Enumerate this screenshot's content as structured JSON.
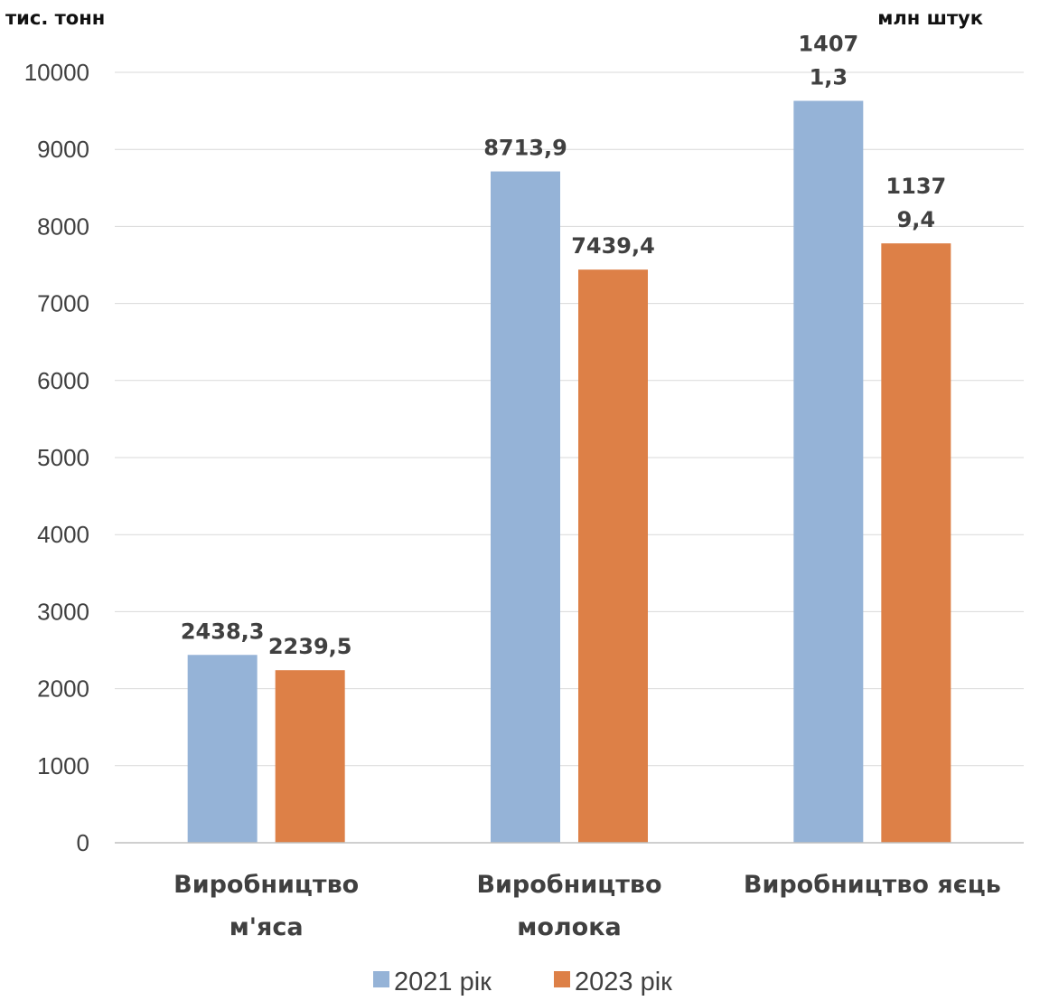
{
  "chart_data": {
    "type": "bar",
    "title": "",
    "left_unit_label": "тис. тонн",
    "right_unit_label": "млн штук",
    "categories": [
      [
        "Виробництво",
        "м'яса"
      ],
      [
        "Виробництво",
        "молока"
      ],
      [
        "Виробництво яєць"
      ]
    ],
    "series": [
      {
        "name": "2021 рік",
        "color": "#95b3d7",
        "values": [
          2438.3,
          8713.9,
          9630
        ],
        "labels": [
          [
            "2438,3"
          ],
          [
            "8713,9"
          ],
          [
            "1407",
            "1,3"
          ]
        ]
      },
      {
        "name": "2023 рік",
        "color": "#dd8047",
        "values": [
          2239.5,
          7439.4,
          7780
        ],
        "labels": [
          [
            "2239,5"
          ],
          [
            "7439,4"
          ],
          [
            "1137",
            "9,4"
          ]
        ]
      }
    ],
    "ylim": [
      0,
      10000
    ],
    "yticks": [
      "0",
      "1000",
      "2000",
      "3000",
      "4000",
      "5000",
      "6000",
      "7000",
      "8000",
      "9000",
      "10000"
    ],
    "grid": true,
    "legend_position": "bottom"
  }
}
